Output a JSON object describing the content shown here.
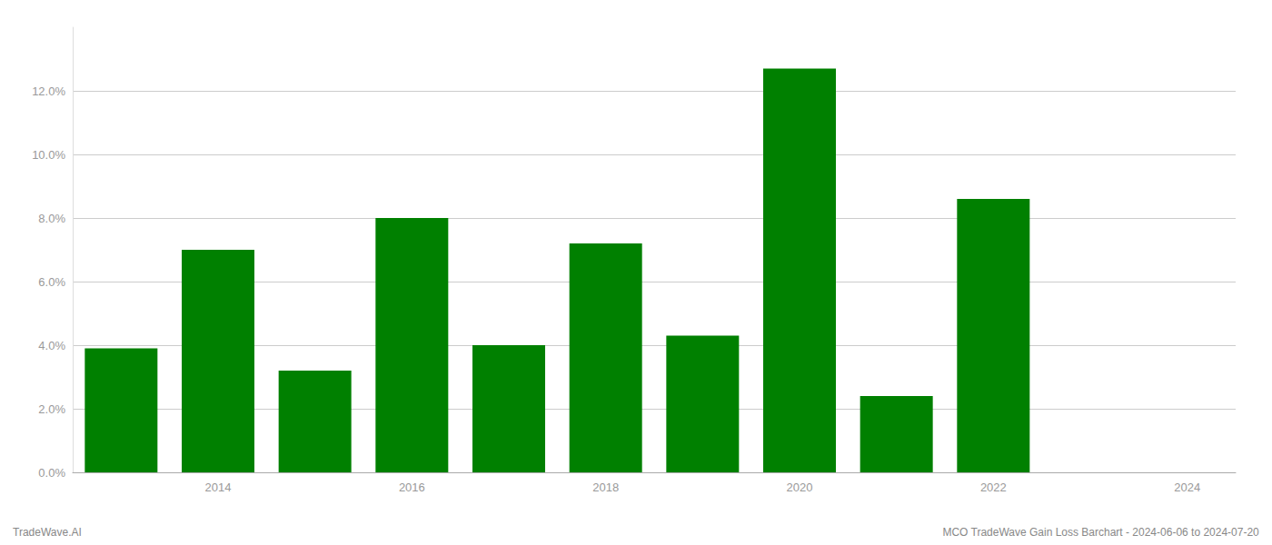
{
  "chart_data": {
    "type": "bar",
    "x": [
      2013,
      2014,
      2015,
      2016,
      2017,
      2018,
      2019,
      2020,
      2021,
      2022,
      2023
    ],
    "values": [
      0.039,
      0.07,
      0.032,
      0.08,
      0.04,
      0.072,
      0.043,
      0.127,
      0.024,
      0.086,
      0.0
    ],
    "color": "#008000",
    "xlim": [
      2012.5,
      2024.5
    ],
    "xticks": [
      2014,
      2016,
      2018,
      2020,
      2022,
      2024
    ],
    "ylim": [
      0.0,
      0.14
    ],
    "yticks": [
      {
        "value": 0.0,
        "label": "0.0%"
      },
      {
        "value": 0.02,
        "label": "2.0%"
      },
      {
        "value": 0.04,
        "label": "4.0%"
      },
      {
        "value": 0.06,
        "label": "6.0%"
      },
      {
        "value": 0.08,
        "label": "8.0%"
      },
      {
        "value": 0.1,
        "label": "10.0%"
      },
      {
        "value": 0.12,
        "label": "12.0%"
      }
    ],
    "grid": true,
    "annotations": [
      "TradeWave.AI",
      "MCO TradeWave Gain Loss Barchart - 2024-06-06 to 2024-07-20"
    ]
  }
}
